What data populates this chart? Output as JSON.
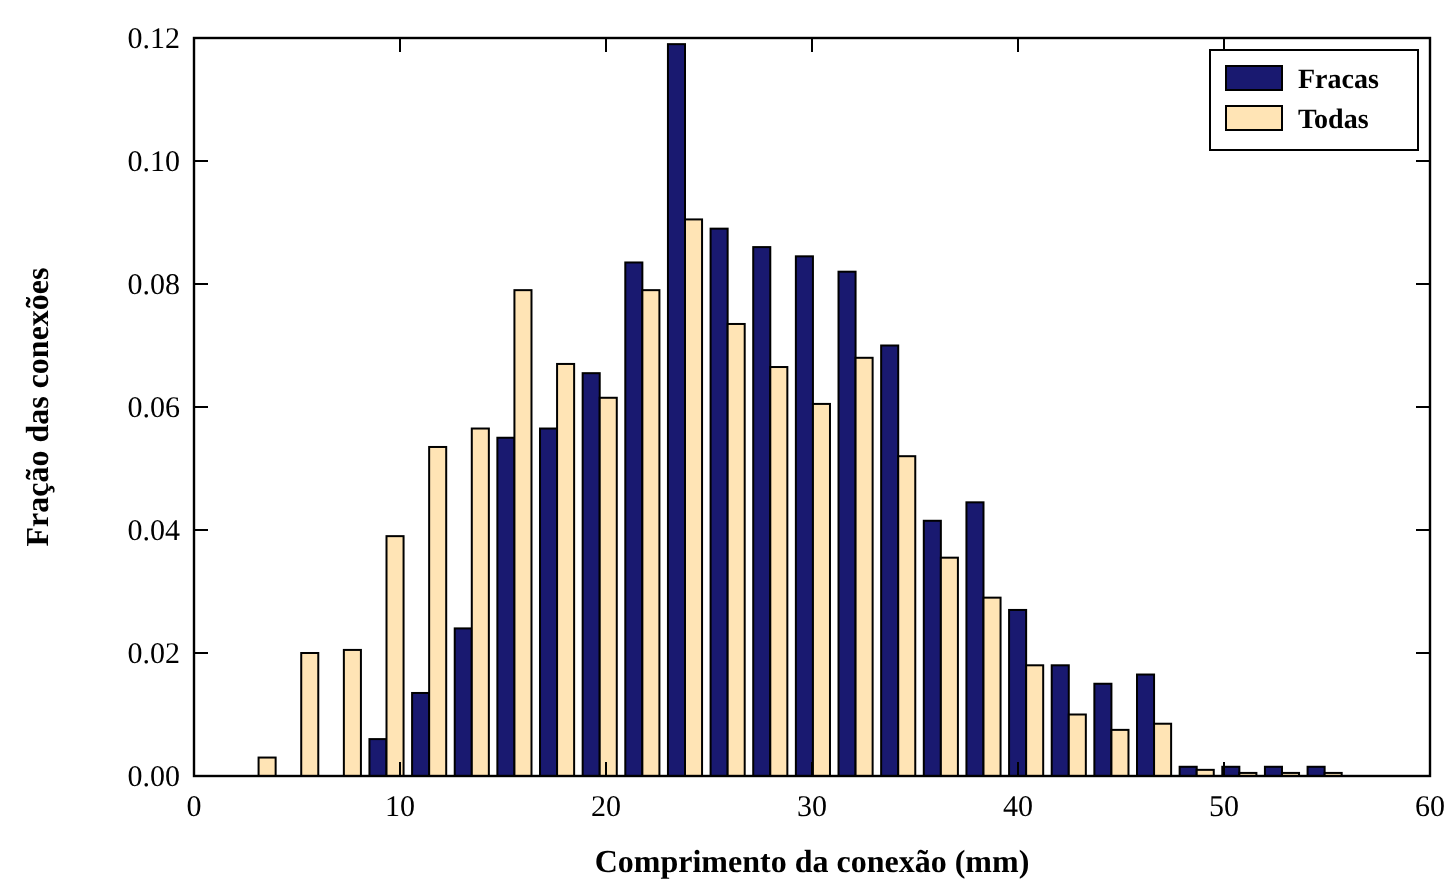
{
  "chart_data": {
    "type": "histogram",
    "xlabel": "Comprimento da conexão (mm)",
    "ylabel": "Fração das conexões",
    "bins": [
      2.1,
      4.17,
      6.24,
      8.31,
      10.38,
      12.45,
      14.52,
      16.59,
      18.66,
      20.73,
      22.8,
      24.87,
      26.94,
      29.01,
      31.08,
      33.15,
      35.22,
      37.29,
      39.36,
      41.43,
      43.5,
      45.57,
      47.64,
      49.71,
      51.78,
      53.85,
      55.92
    ],
    "series": [
      {
        "name": "Fracas",
        "color": "#191970",
        "values": [
          0,
          0,
          0,
          0.006,
          0.0135,
          0.024,
          0.055,
          0.0565,
          0.0655,
          0.0835,
          0.119,
          0.089,
          0.086,
          0.0845,
          0.082,
          0.07,
          0.0415,
          0.0445,
          0.027,
          0.018,
          0.015,
          0.0165,
          0.0015,
          0.0015,
          0.0015,
          0.0015
        ]
      },
      {
        "name": "Todas",
        "color": "#ffe4b5",
        "values": [
          0.003,
          0.02,
          0.0205,
          0.039,
          0.0535,
          0.0565,
          0.079,
          0.067,
          0.0615,
          0.079,
          0.0905,
          0.0735,
          0.0665,
          0.0605,
          0.068,
          0.052,
          0.0355,
          0.029,
          0.018,
          0.01,
          0.0075,
          0.0085,
          0.001,
          0.0005,
          0.0005,
          0.0005
        ]
      }
    ],
    "xlim": [
      0,
      60
    ],
    "xticks": [
      0,
      10,
      20,
      30,
      40,
      50,
      60
    ],
    "ylim": [
      0,
      0.12
    ],
    "yticks": [
      {
        "value": 0,
        "label": "0.00"
      },
      {
        "value": 0.02,
        "label": "0.02"
      },
      {
        "value": 0.04,
        "label": "0.04"
      },
      {
        "value": 0.06,
        "label": "0.06"
      },
      {
        "value": 0.08,
        "label": "0.08"
      },
      {
        "value": 0.1,
        "label": "0.10"
      },
      {
        "value": 0.12,
        "label": "0.12"
      }
    ],
    "grid": false,
    "legend": "top right"
  }
}
